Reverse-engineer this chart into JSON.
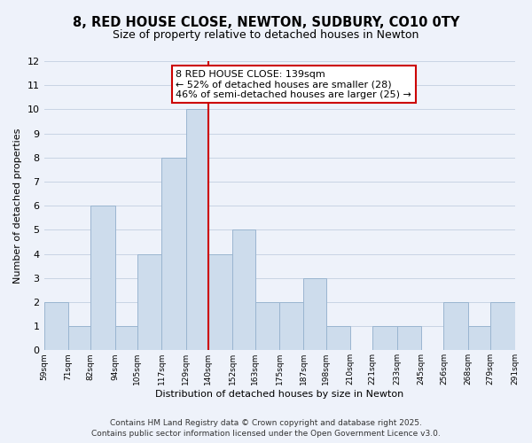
{
  "title": "8, RED HOUSE CLOSE, NEWTON, SUDBURY, CO10 0TY",
  "subtitle": "Size of property relative to detached houses in Newton",
  "xlabel": "Distribution of detached houses by size in Newton",
  "ylabel": "Number of detached properties",
  "bins": [
    59,
    71,
    82,
    94,
    105,
    117,
    129,
    140,
    152,
    163,
    175,
    187,
    198,
    210,
    221,
    233,
    245,
    256,
    268,
    279,
    291
  ],
  "bin_labels": [
    "59sqm",
    "71sqm",
    "82sqm",
    "94sqm",
    "105sqm",
    "117sqm",
    "129sqm",
    "140sqm",
    "152sqm",
    "163sqm",
    "175sqm",
    "187sqm",
    "198sqm",
    "210sqm",
    "221sqm",
    "233sqm",
    "245sqm",
    "256sqm",
    "268sqm",
    "279sqm",
    "291sqm"
  ],
  "counts": [
    2,
    1,
    6,
    1,
    4,
    8,
    10,
    4,
    5,
    2,
    2,
    3,
    1,
    0,
    1,
    1,
    0,
    2,
    1,
    2
  ],
  "bar_color": "#cddcec",
  "bar_edge_color": "#9ab5d0",
  "property_line_x": 140,
  "property_line_color": "#cc0000",
  "annotation_line1": "8 RED HOUSE CLOSE: 139sqm",
  "annotation_line2": "← 52% of detached houses are smaller (28)",
  "annotation_line3": "46% of semi-detached houses are larger (25) →",
  "annotation_box_color": "#ffffff",
  "annotation_box_edge_color": "#cc0000",
  "ylim": [
    0,
    12
  ],
  "yticks": [
    0,
    1,
    2,
    3,
    4,
    5,
    6,
    7,
    8,
    9,
    10,
    11,
    12
  ],
  "grid_color": "#c8d4e4",
  "background_color": "#eef2fa",
  "footer_line1": "Contains HM Land Registry data © Crown copyright and database right 2025.",
  "footer_line2": "Contains public sector information licensed under the Open Government Licence v3.0.",
  "title_fontsize": 10.5,
  "subtitle_fontsize": 9,
  "annotation_fontsize": 8,
  "footer_fontsize": 6.5,
  "xlabel_fontsize": 8,
  "ylabel_fontsize": 8
}
